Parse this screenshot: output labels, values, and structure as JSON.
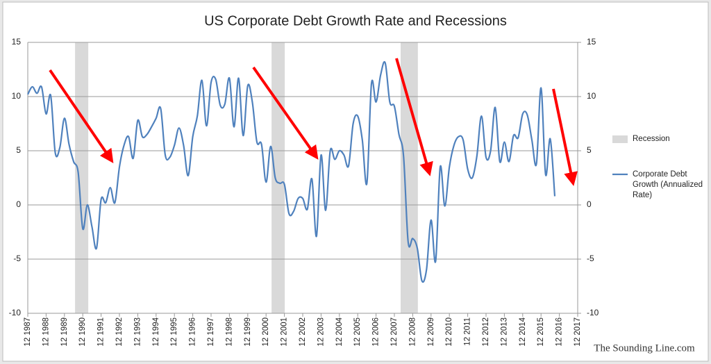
{
  "chart_data": {
    "type": "line",
    "title": "US Corporate Debt Growth Rate and Recessions",
    "watermark": "The Sounding Line.com",
    "x": [
      1987.92,
      1988.17,
      1988.42,
      1988.67,
      1988.92,
      1989.17,
      1989.42,
      1989.67,
      1989.92,
      1990.17,
      1990.42,
      1990.67,
      1990.92,
      1991.17,
      1991.42,
      1991.67,
      1991.92,
      1992.17,
      1992.42,
      1992.67,
      1992.92,
      1993.17,
      1993.42,
      1993.67,
      1993.92,
      1994.17,
      1994.42,
      1994.67,
      1994.92,
      1995.17,
      1995.42,
      1995.67,
      1995.92,
      1996.17,
      1996.42,
      1996.67,
      1996.92,
      1997.17,
      1997.42,
      1997.67,
      1997.92,
      1998.17,
      1998.42,
      1998.67,
      1998.92,
      1999.17,
      1999.42,
      1999.67,
      1999.92,
      2000.17,
      2000.42,
      2000.67,
      2000.92,
      2001.17,
      2001.42,
      2001.67,
      2001.92,
      2002.17,
      2002.42,
      2002.67,
      2002.92,
      2003.17,
      2003.42,
      2003.67,
      2003.92,
      2004.17,
      2004.42,
      2004.67,
      2004.92,
      2005.17,
      2005.42,
      2005.67,
      2005.92,
      2006.17,
      2006.42,
      2006.67,
      2006.92,
      2007.17,
      2007.42,
      2007.67,
      2007.92,
      2008.17,
      2008.42,
      2008.67,
      2008.92,
      2009.17,
      2009.42,
      2009.67,
      2009.92,
      2010.17,
      2010.42,
      2010.67,
      2010.92,
      2011.17,
      2011.42,
      2011.67,
      2011.92,
      2012.17,
      2012.42,
      2012.67,
      2012.92,
      2013.17,
      2013.42,
      2013.67,
      2013.92,
      2014.17,
      2014.42,
      2014.67,
      2014.92,
      2015.17,
      2015.42,
      2015.67,
      2015.92,
      2016.17,
      2016.42,
      2016.67
    ],
    "series": [
      {
        "name": "Corporate Debt Growth (Annualized Rate)",
        "color": "#4f81bd",
        "values": [
          10.2,
          10.9,
          10.3,
          10.9,
          8.4,
          10.1,
          4.8,
          5.3,
          8.0,
          5.6,
          4.0,
          3.0,
          -2.2,
          0.0,
          -2.0,
          -4.0,
          0.5,
          0.2,
          1.6,
          0.2,
          3.5,
          5.5,
          6.3,
          4.3,
          7.8,
          6.3,
          6.5,
          7.2,
          8.0,
          8.9,
          4.6,
          4.4,
          5.5,
          7.1,
          5.5,
          2.7,
          6.3,
          8.2,
          11.5,
          7.3,
          11.3,
          11.6,
          9.2,
          9.3,
          11.7,
          7.2,
          11.7,
          6.4,
          11.0,
          9.5,
          5.8,
          5.6,
          2.1,
          5.4,
          2.5,
          2.0,
          1.9,
          -0.8,
          -0.6,
          0.6,
          0.6,
          -0.4,
          2.4,
          -2.9,
          4.6,
          -0.5,
          5.0,
          4.2,
          5.0,
          4.6,
          3.6,
          7.5,
          8.2,
          6.0,
          2.0,
          11.2,
          9.5,
          12.0,
          13.1,
          9.5,
          9.1,
          6.5,
          4.5,
          -3.4,
          -3.1,
          -4.0,
          -7.0,
          -6.0,
          -1.4,
          -5.2,
          3.5,
          -0.1,
          3.5,
          5.5,
          6.3,
          6.0,
          3.3,
          2.5,
          4.5,
          8.2,
          4.4,
          5.0,
          9.0,
          4.0,
          5.8,
          4.0,
          6.4,
          6.2,
          8.4,
          8.3,
          6.0,
          3.8,
          10.8,
          2.8,
          6.1,
          0.8
        ]
      }
    ],
    "recession": {
      "name": "Recession",
      "color": "#d9d9d9",
      "periods": [
        [
          1990.5,
          1991.22
        ],
        [
          2001.22,
          2001.94
        ],
        [
          2008.26,
          2009.2
        ]
      ]
    },
    "xlim": [
      1987.92,
      2017.92
    ],
    "xticks": [
      {
        "value": 1987.92,
        "label": "12 1987"
      },
      {
        "value": 1988.92,
        "label": "12 1988"
      },
      {
        "value": 1989.92,
        "label": "12 1989"
      },
      {
        "value": 1990.92,
        "label": "12 1990"
      },
      {
        "value": 1991.92,
        "label": "12 1991"
      },
      {
        "value": 1992.92,
        "label": "12 1992"
      },
      {
        "value": 1993.92,
        "label": "12 1993"
      },
      {
        "value": 1994.92,
        "label": "12 1994"
      },
      {
        "value": 1995.92,
        "label": "12 1995"
      },
      {
        "value": 1996.92,
        "label": "12 1996"
      },
      {
        "value": 1997.92,
        "label": "12 1997"
      },
      {
        "value": 1998.92,
        "label": "12 1998"
      },
      {
        "value": 1999.92,
        "label": "12 1999"
      },
      {
        "value": 2000.92,
        "label": "12 2000"
      },
      {
        "value": 2001.92,
        "label": "12 2001"
      },
      {
        "value": 2002.92,
        "label": "12 2002"
      },
      {
        "value": 2003.92,
        "label": "12 2003"
      },
      {
        "value": 2004.92,
        "label": "12 2004"
      },
      {
        "value": 2005.92,
        "label": "12 2005"
      },
      {
        "value": 2006.92,
        "label": "12 2006"
      },
      {
        "value": 2007.92,
        "label": "12 2007"
      },
      {
        "value": 2008.92,
        "label": "12 2008"
      },
      {
        "value": 2009.92,
        "label": "12 2009"
      },
      {
        "value": 2010.92,
        "label": "12 2010"
      },
      {
        "value": 2011.92,
        "label": "12 2011"
      },
      {
        "value": 2012.92,
        "label": "12 2012"
      },
      {
        "value": 2013.92,
        "label": "12 2013"
      },
      {
        "value": 2014.92,
        "label": "12 2014"
      },
      {
        "value": 2015.92,
        "label": "12 2015"
      },
      {
        "value": 2016.92,
        "label": "12 2016"
      },
      {
        "value": 2017.92,
        "label": "12 2017"
      }
    ],
    "ylim": [
      -10,
      15
    ],
    "yticks": [
      -10,
      -5,
      0,
      5,
      10,
      15
    ],
    "y2lim": [
      -10,
      15
    ],
    "y2ticks": [
      -10,
      -5,
      0,
      5,
      10,
      15
    ],
    "grid": true,
    "legend": "right"
  }
}
